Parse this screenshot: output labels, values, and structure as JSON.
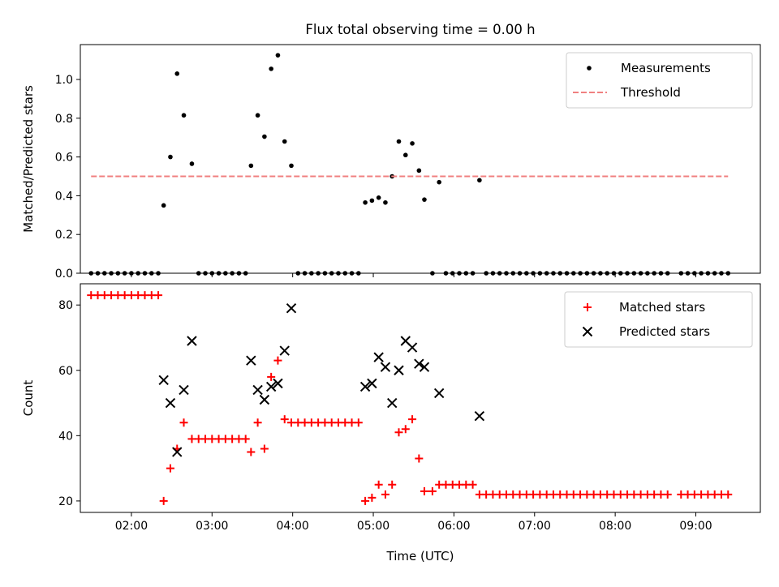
{
  "figure": {
    "title": "Flux total observing time = 0.00 h"
  },
  "chart_data": [
    {
      "type": "scatter",
      "panel": "top",
      "title": "Flux total observing time = 0.00 h",
      "xlabel": "",
      "ylabel": "Matched/Predicted stars",
      "xlim": [
        "01:22",
        "09:48"
      ],
      "ylim": [
        0,
        1.18
      ],
      "yticks": [
        0.0,
        0.2,
        0.4,
        0.6,
        0.8,
        1.0
      ],
      "ytick_labels": [
        "0.0",
        "0.2",
        "0.4",
        "0.6",
        "0.8",
        "1.0"
      ],
      "legend_position": "top-right",
      "series": [
        {
          "name": "Measurements",
          "marker": "dot",
          "color": "#000000",
          "points": [
            [
              "01:30",
              0
            ],
            [
              "01:35",
              0
            ],
            [
              "01:40",
              0
            ],
            [
              "01:45",
              0
            ],
            [
              "01:50",
              0
            ],
            [
              "01:55",
              0
            ],
            [
              "02:00",
              0
            ],
            [
              "02:05",
              0
            ],
            [
              "02:10",
              0
            ],
            [
              "02:15",
              0
            ],
            [
              "02:20",
              0
            ],
            [
              "02:24",
              0.35
            ],
            [
              "02:29",
              0.6
            ],
            [
              "02:34",
              1.03
            ],
            [
              "02:39",
              0.815
            ],
            [
              "02:45",
              0.565
            ],
            [
              "02:50",
              0
            ],
            [
              "02:55",
              0
            ],
            [
              "03:00",
              0
            ],
            [
              "03:05",
              0
            ],
            [
              "03:10",
              0
            ],
            [
              "03:15",
              0
            ],
            [
              "03:20",
              0
            ],
            [
              "03:25",
              0
            ],
            [
              "03:29",
              0.555
            ],
            [
              "03:34",
              0.815
            ],
            [
              "03:39",
              0.705
            ],
            [
              "03:44",
              1.055
            ],
            [
              "03:49",
              1.125
            ],
            [
              "03:54",
              0.68
            ],
            [
              "03:59",
              0.555
            ],
            [
              "04:04",
              0
            ],
            [
              "04:09",
              0
            ],
            [
              "04:14",
              0
            ],
            [
              "04:19",
              0
            ],
            [
              "04:24",
              0
            ],
            [
              "04:29",
              0
            ],
            [
              "04:34",
              0
            ],
            [
              "04:39",
              0
            ],
            [
              "04:44",
              0
            ],
            [
              "04:49",
              0
            ],
            [
              "04:54",
              0.365
            ],
            [
              "04:59",
              0.375
            ],
            [
              "05:04",
              0.39
            ],
            [
              "05:09",
              0.365
            ],
            [
              "05:14",
              0.5
            ],
            [
              "05:19",
              0.68
            ],
            [
              "05:24",
              0.61
            ],
            [
              "05:29",
              0.67
            ],
            [
              "05:34",
              0.53
            ],
            [
              "05:38",
              0.38
            ],
            [
              "05:44",
              0
            ],
            [
              "05:49",
              0.47
            ],
            [
              "05:54",
              0
            ],
            [
              "05:59",
              0
            ],
            [
              "06:04",
              0
            ],
            [
              "06:09",
              0
            ],
            [
              "06:14",
              0
            ],
            [
              "06:19",
              0.48
            ],
            [
              "06:24",
              0
            ],
            [
              "06:29",
              0
            ],
            [
              "06:34",
              0
            ],
            [
              "06:39",
              0
            ],
            [
              "06:44",
              0
            ],
            [
              "06:49",
              0
            ],
            [
              "06:54",
              0
            ],
            [
              "06:59",
              0
            ],
            [
              "07:04",
              0
            ],
            [
              "07:09",
              0
            ],
            [
              "07:14",
              0
            ],
            [
              "07:19",
              0
            ],
            [
              "07:24",
              0
            ],
            [
              "07:29",
              0
            ],
            [
              "07:34",
              0
            ],
            [
              "07:39",
              0
            ],
            [
              "07:44",
              0
            ],
            [
              "07:49",
              0
            ],
            [
              "07:54",
              0
            ],
            [
              "07:59",
              0
            ],
            [
              "08:04",
              0
            ],
            [
              "08:09",
              0
            ],
            [
              "08:14",
              0
            ],
            [
              "08:19",
              0
            ],
            [
              "08:24",
              0
            ],
            [
              "08:29",
              0
            ],
            [
              "08:34",
              0
            ],
            [
              "08:39",
              0
            ],
            [
              "08:49",
              0
            ],
            [
              "08:54",
              0
            ],
            [
              "08:59",
              0
            ],
            [
              "09:04",
              0
            ],
            [
              "09:09",
              0
            ],
            [
              "09:14",
              0
            ],
            [
              "09:19",
              0
            ],
            [
              "09:24",
              0
            ]
          ]
        },
        {
          "name": "Threshold",
          "line_style": "dashed",
          "color": "#f08080",
          "points": [
            [
              "01:30",
              0.5
            ],
            [
              "09:24",
              0.5
            ]
          ]
        }
      ]
    },
    {
      "type": "scatter",
      "panel": "bottom",
      "title": "",
      "xlabel": "Time (UTC)",
      "ylabel": "Count",
      "xlim": [
        "01:22",
        "09:48"
      ],
      "ylim": [
        16.5,
        86.5
      ],
      "xtick_labels": [
        "02:00",
        "03:00",
        "04:00",
        "05:00",
        "06:00",
        "07:00",
        "08:00",
        "09:00"
      ],
      "yticks": [
        20,
        40,
        60,
        80
      ],
      "ytick_labels": [
        "20",
        "40",
        "60",
        "80"
      ],
      "legend_position": "top-right",
      "series": [
        {
          "name": "Matched stars",
          "marker": "plus",
          "color": "#ff0000",
          "points": [
            [
              "01:30",
              83
            ],
            [
              "01:35",
              83
            ],
            [
              "01:40",
              83
            ],
            [
              "01:45",
              83
            ],
            [
              "01:50",
              83
            ],
            [
              "01:55",
              83
            ],
            [
              "02:00",
              83
            ],
            [
              "02:05",
              83
            ],
            [
              "02:10",
              83
            ],
            [
              "02:15",
              83
            ],
            [
              "02:20",
              83
            ],
            [
              "02:24",
              20
            ],
            [
              "02:29",
              30
            ],
            [
              "02:34",
              36
            ],
            [
              "02:39",
              44
            ],
            [
              "02:45",
              39
            ],
            [
              "02:50",
              39
            ],
            [
              "02:55",
              39
            ],
            [
              "03:00",
              39
            ],
            [
              "03:05",
              39
            ],
            [
              "03:10",
              39
            ],
            [
              "03:15",
              39
            ],
            [
              "03:20",
              39
            ],
            [
              "03:25",
              39
            ],
            [
              "03:29",
              35
            ],
            [
              "03:34",
              44
            ],
            [
              "03:39",
              36
            ],
            [
              "03:44",
              58
            ],
            [
              "03:49",
              63
            ],
            [
              "03:54",
              45
            ],
            [
              "03:59",
              44
            ],
            [
              "04:04",
              44
            ],
            [
              "04:09",
              44
            ],
            [
              "04:14",
              44
            ],
            [
              "04:19",
              44
            ],
            [
              "04:24",
              44
            ],
            [
              "04:29",
              44
            ],
            [
              "04:34",
              44
            ],
            [
              "04:39",
              44
            ],
            [
              "04:44",
              44
            ],
            [
              "04:49",
              44
            ],
            [
              "04:54",
              20
            ],
            [
              "04:59",
              21
            ],
            [
              "05:04",
              25
            ],
            [
              "05:09",
              22
            ],
            [
              "05:14",
              25
            ],
            [
              "05:19",
              41
            ],
            [
              "05:24",
              42
            ],
            [
              "05:29",
              45
            ],
            [
              "05:34",
              33
            ],
            [
              "05:38",
              23
            ],
            [
              "05:44",
              23
            ],
            [
              "05:49",
              25
            ],
            [
              "05:54",
              25
            ],
            [
              "05:59",
              25
            ],
            [
              "06:04",
              25
            ],
            [
              "06:09",
              25
            ],
            [
              "06:14",
              25
            ],
            [
              "06:19",
              22
            ],
            [
              "06:24",
              22
            ],
            [
              "06:29",
              22
            ],
            [
              "06:34",
              22
            ],
            [
              "06:39",
              22
            ],
            [
              "06:44",
              22
            ],
            [
              "06:49",
              22
            ],
            [
              "06:54",
              22
            ],
            [
              "06:59",
              22
            ],
            [
              "07:04",
              22
            ],
            [
              "07:09",
              22
            ],
            [
              "07:14",
              22
            ],
            [
              "07:19",
              22
            ],
            [
              "07:24",
              22
            ],
            [
              "07:29",
              22
            ],
            [
              "07:34",
              22
            ],
            [
              "07:39",
              22
            ],
            [
              "07:44",
              22
            ],
            [
              "07:49",
              22
            ],
            [
              "07:54",
              22
            ],
            [
              "07:59",
              22
            ],
            [
              "08:04",
              22
            ],
            [
              "08:09",
              22
            ],
            [
              "08:14",
              22
            ],
            [
              "08:19",
              22
            ],
            [
              "08:24",
              22
            ],
            [
              "08:29",
              22
            ],
            [
              "08:34",
              22
            ],
            [
              "08:39",
              22
            ],
            [
              "08:49",
              22
            ],
            [
              "08:54",
              22
            ],
            [
              "08:59",
              22
            ],
            [
              "09:04",
              22
            ],
            [
              "09:09",
              22
            ],
            [
              "09:14",
              22
            ],
            [
              "09:19",
              22
            ],
            [
              "09:24",
              22
            ]
          ]
        },
        {
          "name": "Predicted stars",
          "marker": "x",
          "color": "#000000",
          "points": [
            [
              "02:24",
              57
            ],
            [
              "02:29",
              50
            ],
            [
              "02:34",
              35
            ],
            [
              "02:39",
              54
            ],
            [
              "02:45",
              69
            ],
            [
              "03:29",
              63
            ],
            [
              "03:34",
              54
            ],
            [
              "03:39",
              51
            ],
            [
              "03:44",
              55
            ],
            [
              "03:49",
              56
            ],
            [
              "03:54",
              66
            ],
            [
              "03:59",
              79
            ],
            [
              "04:54",
              55
            ],
            [
              "04:59",
              56
            ],
            [
              "05:04",
              64
            ],
            [
              "05:09",
              61
            ],
            [
              "05:14",
              50
            ],
            [
              "05:19",
              60
            ],
            [
              "05:24",
              69
            ],
            [
              "05:29",
              67
            ],
            [
              "05:34",
              62
            ],
            [
              "05:38",
              61
            ],
            [
              "05:49",
              53
            ],
            [
              "06:19",
              46
            ]
          ]
        }
      ]
    }
  ]
}
